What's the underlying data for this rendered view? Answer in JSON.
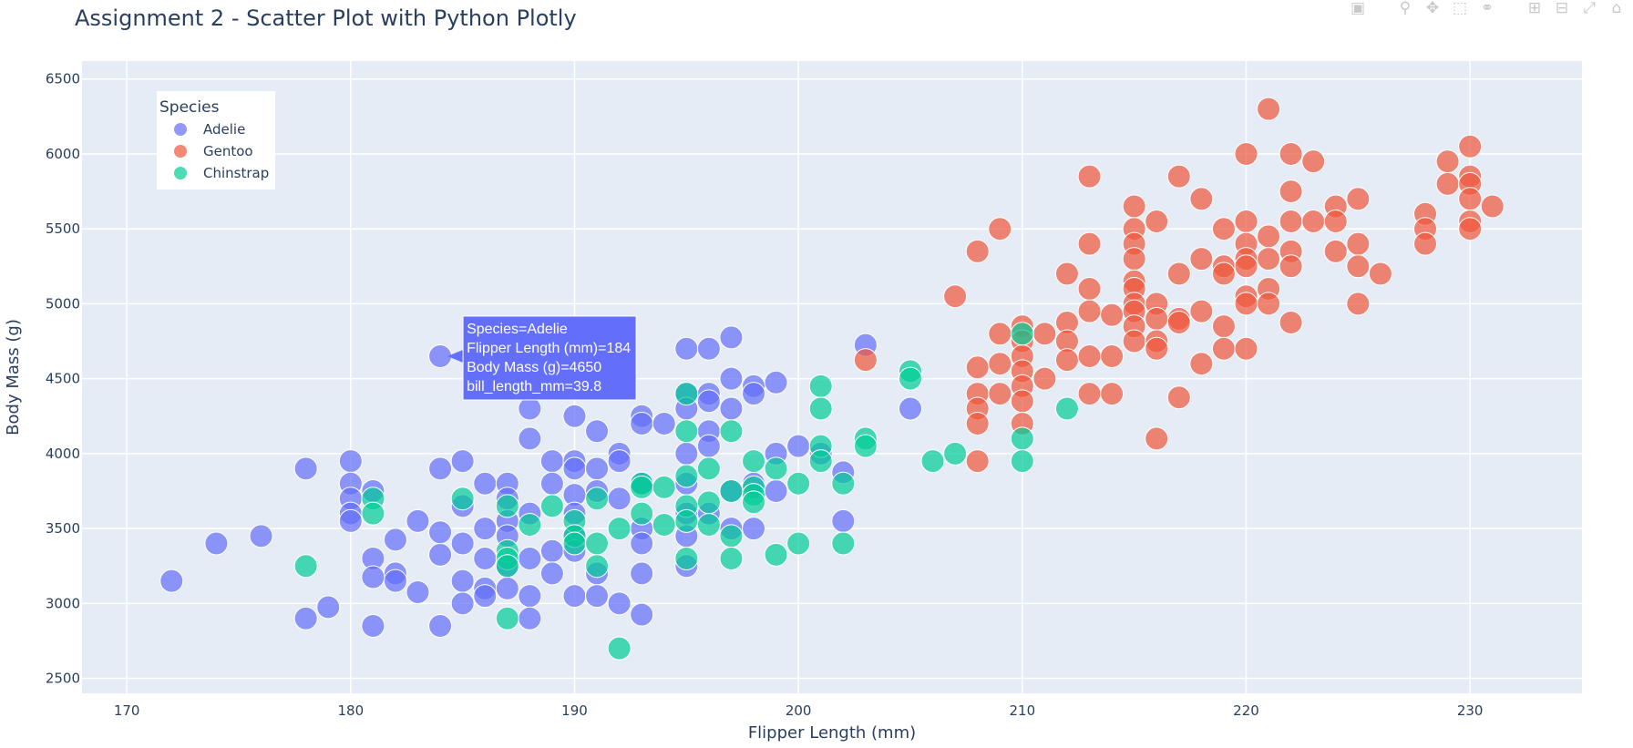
{
  "title": "Assignment 2 - Scatter Plot with Python Plotly",
  "modebar": {
    "buttons": [
      "camera-icon",
      "zoom-icon",
      "pan-icon",
      "box-select-icon",
      "lasso-select-icon",
      "zoom-in-icon",
      "zoom-out-icon",
      "autoscale-icon",
      "reset-axes-icon"
    ]
  },
  "colors": {
    "plot_bg": "#e5ecf6",
    "Adelie": "#636efa",
    "Gentoo": "#ef553b",
    "Chinstrap": "#00cc96",
    "text": "#2a3f5f"
  },
  "chart_data": {
    "type": "scatter",
    "title": "Assignment 2 - Scatter Plot with Python Plotly",
    "xlabel": "Flipper Length (mm)",
    "ylabel": "Body Mass (g)",
    "xlim": [
      168,
      235
    ],
    "ylim": [
      2400,
      6620
    ],
    "xticks": [
      170,
      180,
      190,
      200,
      210,
      220,
      230
    ],
    "yticks": [
      2500,
      3000,
      3500,
      4000,
      4500,
      5000,
      5500,
      6000,
      6500
    ],
    "grid": true,
    "legend": {
      "title": "Species",
      "position": "top-left",
      "entries": [
        "Adelie",
        "Gentoo",
        "Chinstrap"
      ]
    },
    "series": [
      {
        "name": "Adelie",
        "points": [
          [
            172,
            3150
          ],
          [
            174,
            3400
          ],
          [
            176,
            3450
          ],
          [
            178,
            3900
          ],
          [
            178,
            2900
          ],
          [
            179,
            2975
          ],
          [
            180,
            3950
          ],
          [
            180,
            3800
          ],
          [
            180,
            3700
          ],
          [
            180,
            3600
          ],
          [
            180,
            3550
          ],
          [
            181,
            3300
          ],
          [
            181,
            3175
          ],
          [
            181,
            3750
          ],
          [
            181,
            2850
          ],
          [
            182,
            3200
          ],
          [
            182,
            3150
          ],
          [
            182,
            3425
          ],
          [
            183,
            3075
          ],
          [
            183,
            3550
          ],
          [
            184,
            3900
          ],
          [
            184,
            3325
          ],
          [
            184,
            3475
          ],
          [
            184,
            2850
          ],
          [
            184,
            4650
          ],
          [
            185,
            3950
          ],
          [
            185,
            3650
          ],
          [
            185,
            3400
          ],
          [
            185,
            3150
          ],
          [
            185,
            3000
          ],
          [
            186,
            3800
          ],
          [
            186,
            3500
          ],
          [
            186,
            3300
          ],
          [
            186,
            3100
          ],
          [
            186,
            3050
          ],
          [
            187,
            3800
          ],
          [
            187,
            3700
          ],
          [
            187,
            3550
          ],
          [
            187,
            3450
          ],
          [
            187,
            3250
          ],
          [
            187,
            3100
          ],
          [
            188,
            4300
          ],
          [
            188,
            4100
          ],
          [
            188,
            3600
          ],
          [
            188,
            3300
          ],
          [
            188,
            3050
          ],
          [
            188,
            2900
          ],
          [
            189,
            3950
          ],
          [
            189,
            3800
          ],
          [
            189,
            3350
          ],
          [
            189,
            3200
          ],
          [
            190,
            4250
          ],
          [
            190,
            3950
          ],
          [
            190,
            3900
          ],
          [
            190,
            3725
          ],
          [
            190,
            3600
          ],
          [
            190,
            3450
          ],
          [
            190,
            3350
          ],
          [
            190,
            3050
          ],
          [
            191,
            4150
          ],
          [
            191,
            3900
          ],
          [
            191,
            3750
          ],
          [
            191,
            3200
          ],
          [
            191,
            3050
          ],
          [
            192,
            4000
          ],
          [
            192,
            3950
          ],
          [
            192,
            3700
          ],
          [
            192,
            3000
          ],
          [
            193,
            4250
          ],
          [
            193,
            4200
          ],
          [
            193,
            3800
          ],
          [
            193,
            3500
          ],
          [
            193,
            3400
          ],
          [
            193,
            3200
          ],
          [
            193,
            2925
          ],
          [
            194,
            4200
          ],
          [
            195,
            4700
          ],
          [
            195,
            4400
          ],
          [
            195,
            4300
          ],
          [
            195,
            4000
          ],
          [
            195,
            3800
          ],
          [
            195,
            3600
          ],
          [
            195,
            3450
          ],
          [
            195,
            3250
          ],
          [
            196,
            4700
          ],
          [
            196,
            4400
          ],
          [
            196,
            4350
          ],
          [
            196,
            4150
          ],
          [
            196,
            4050
          ],
          [
            196,
            3600
          ],
          [
            197,
            4775
          ],
          [
            197,
            4500
          ],
          [
            197,
            4300
          ],
          [
            197,
            3750
          ],
          [
            197,
            3500
          ],
          [
            198,
            4450
          ],
          [
            198,
            4400
          ],
          [
            198,
            3800
          ],
          [
            198,
            3500
          ],
          [
            199,
            4475
          ],
          [
            199,
            4000
          ],
          [
            199,
            3750
          ],
          [
            200,
            4050
          ],
          [
            201,
            4000
          ],
          [
            202,
            3875
          ],
          [
            202,
            3550
          ],
          [
            203,
            4725
          ],
          [
            205,
            4300
          ]
        ]
      },
      {
        "name": "Gentoo",
        "points": [
          [
            203,
            4625
          ],
          [
            207,
            5050
          ],
          [
            208,
            5350
          ],
          [
            208,
            4575
          ],
          [
            208,
            4400
          ],
          [
            208,
            4300
          ],
          [
            208,
            4200
          ],
          [
            208,
            3950
          ],
          [
            209,
            5500
          ],
          [
            209,
            4800
          ],
          [
            209,
            4600
          ],
          [
            209,
            4400
          ],
          [
            210,
            4850
          ],
          [
            210,
            4750
          ],
          [
            210,
            4650
          ],
          [
            210,
            4550
          ],
          [
            210,
            4450
          ],
          [
            210,
            4350
          ],
          [
            210,
            4200
          ],
          [
            211,
            4800
          ],
          [
            211,
            4500
          ],
          [
            212,
            5200
          ],
          [
            212,
            4875
          ],
          [
            212,
            4750
          ],
          [
            212,
            4625
          ],
          [
            213,
            5850
          ],
          [
            213,
            5400
          ],
          [
            213,
            5100
          ],
          [
            213,
            4950
          ],
          [
            213,
            4650
          ],
          [
            213,
            4400
          ],
          [
            214,
            4925
          ],
          [
            214,
            4650
          ],
          [
            214,
            4400
          ],
          [
            215,
            5650
          ],
          [
            215,
            5500
          ],
          [
            215,
            5400
          ],
          [
            215,
            5300
          ],
          [
            215,
            5150
          ],
          [
            215,
            5100
          ],
          [
            215,
            5000
          ],
          [
            215,
            4950
          ],
          [
            215,
            4850
          ],
          [
            215,
            4750
          ],
          [
            216,
            5550
          ],
          [
            216,
            5000
          ],
          [
            216,
            4900
          ],
          [
            216,
            4750
          ],
          [
            216,
            4700
          ],
          [
            216,
            4100
          ],
          [
            217,
            5850
          ],
          [
            217,
            5200
          ],
          [
            217,
            4900
          ],
          [
            217,
            4875
          ],
          [
            217,
            4375
          ],
          [
            218,
            5700
          ],
          [
            218,
            5300
          ],
          [
            218,
            4950
          ],
          [
            218,
            4600
          ],
          [
            219,
            5500
          ],
          [
            219,
            5250
          ],
          [
            219,
            5200
          ],
          [
            219,
            4850
          ],
          [
            219,
            4700
          ],
          [
            220,
            6000
          ],
          [
            220,
            5550
          ],
          [
            220,
            5400
          ],
          [
            220,
            5300
          ],
          [
            220,
            5250
          ],
          [
            220,
            5050
          ],
          [
            220,
            5000
          ],
          [
            220,
            4700
          ],
          [
            221,
            6300
          ],
          [
            221,
            5450
          ],
          [
            221,
            5300
          ],
          [
            221,
            5100
          ],
          [
            221,
            5000
          ],
          [
            222,
            6000
          ],
          [
            222,
            5750
          ],
          [
            222,
            5550
          ],
          [
            222,
            5350
          ],
          [
            222,
            5250
          ],
          [
            222,
            4875
          ],
          [
            223,
            5950
          ],
          [
            223,
            5550
          ],
          [
            224,
            5650
          ],
          [
            224,
            5550
          ],
          [
            224,
            5350
          ],
          [
            225,
            5700
          ],
          [
            225,
            5400
          ],
          [
            225,
            5250
          ],
          [
            225,
            5000
          ],
          [
            226,
            5200
          ],
          [
            228,
            5600
          ],
          [
            228,
            5500
          ],
          [
            228,
            5400
          ],
          [
            229,
            5950
          ],
          [
            229,
            5800
          ],
          [
            230,
            6050
          ],
          [
            230,
            5850
          ],
          [
            230,
            5800
          ],
          [
            230,
            5700
          ],
          [
            230,
            5550
          ],
          [
            230,
            5500
          ],
          [
            231,
            5650
          ]
        ]
      },
      {
        "name": "Chinstrap",
        "points": [
          [
            178,
            3250
          ],
          [
            181,
            3700
          ],
          [
            181,
            3600
          ],
          [
            185,
            3700
          ],
          [
            187,
            3650
          ],
          [
            187,
            3350
          ],
          [
            187,
            3300
          ],
          [
            187,
            3250
          ],
          [
            187,
            2900
          ],
          [
            188,
            3525
          ],
          [
            189,
            3650
          ],
          [
            190,
            3550
          ],
          [
            190,
            3450
          ],
          [
            190,
            3400
          ],
          [
            191,
            3700
          ],
          [
            191,
            3400
          ],
          [
            191,
            3250
          ],
          [
            192,
            3500
          ],
          [
            192,
            2700
          ],
          [
            193,
            3800
          ],
          [
            193,
            3775
          ],
          [
            193,
            3600
          ],
          [
            194,
            3775
          ],
          [
            194,
            3525
          ],
          [
            195,
            4400
          ],
          [
            195,
            4150
          ],
          [
            195,
            3850
          ],
          [
            195,
            3650
          ],
          [
            195,
            3550
          ],
          [
            195,
            3300
          ],
          [
            196,
            3900
          ],
          [
            196,
            3675
          ],
          [
            196,
            3525
          ],
          [
            197,
            4150
          ],
          [
            197,
            3750
          ],
          [
            197,
            3450
          ],
          [
            197,
            3300
          ],
          [
            198,
            3950
          ],
          [
            198,
            3775
          ],
          [
            198,
            3725
          ],
          [
            198,
            3675
          ],
          [
            199,
            3900
          ],
          [
            199,
            3325
          ],
          [
            200,
            3800
          ],
          [
            200,
            3400
          ],
          [
            201,
            4450
          ],
          [
            201,
            4300
          ],
          [
            201,
            4050
          ],
          [
            201,
            3950
          ],
          [
            202,
            3800
          ],
          [
            202,
            3400
          ],
          [
            203,
            4100
          ],
          [
            203,
            4050
          ],
          [
            205,
            4550
          ],
          [
            205,
            4500
          ],
          [
            206,
            3950
          ],
          [
            207,
            4000
          ],
          [
            210,
            4800
          ],
          [
            210,
            4100
          ],
          [
            210,
            3950
          ],
          [
            212,
            4300
          ]
        ]
      }
    ],
    "hover": {
      "point": [
        184,
        4650
      ],
      "lines": [
        "Species=Adelie",
        "Flipper Length (mm)=184",
        "Body Mass (g)=4650",
        "bill_length_mm=39.8"
      ]
    }
  }
}
